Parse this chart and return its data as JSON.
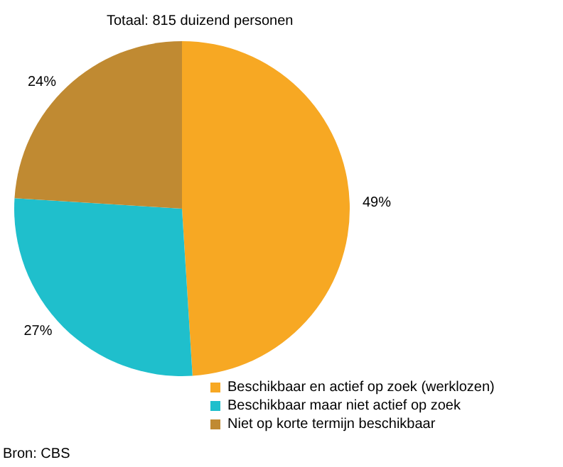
{
  "chart_data": {
    "type": "pie",
    "title": "Totaal: 815 duizend personen",
    "categories": [
      "Beschikbaar en actief op zoek (werklozen)",
      "Beschikbaar maar niet actief op zoek",
      "Niet op korte termijn beschikbaar"
    ],
    "values": [
      49,
      27,
      24
    ],
    "colors": [
      "#f7a823",
      "#1fbfcc",
      "#c08a32"
    ],
    "value_labels": [
      "49%",
      "27%",
      "24%"
    ],
    "legend": "bottom right",
    "annotations": [
      "Bron: CBS"
    ]
  }
}
